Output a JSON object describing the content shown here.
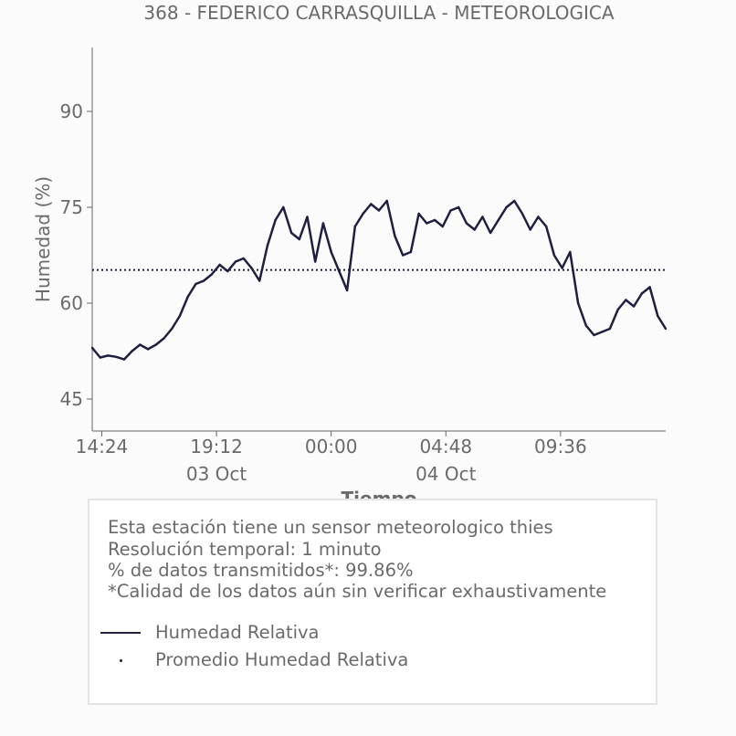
{
  "chart_data": {
    "type": "line",
    "title": "368 - FEDERICO CARRASQUILLA - METEOROLOGICA",
    "xlabel": "Tiempo",
    "ylabel": "Humedad (%)",
    "ylim": [
      40,
      100
    ],
    "yticks": [
      45,
      60,
      75,
      90
    ],
    "xticks": [
      {
        "label": "14:24",
        "x": "2023-10-03T14:24"
      },
      {
        "label": "19:12",
        "x": "2023-10-03T19:12"
      },
      {
        "label": "00:00",
        "x": "2023-10-04T00:00"
      },
      {
        "label": "04:48",
        "x": "2023-10-04T04:48"
      },
      {
        "label": "09:36",
        "x": "2023-10-04T09:36"
      }
    ],
    "date_labels": [
      {
        "label": "03 Oct",
        "x": "2023-10-03T19:12"
      },
      {
        "label": "04 Oct",
        "x": "2023-10-04T04:48"
      }
    ],
    "xlim": [
      "2023-10-03T14:00",
      "2023-10-04T14:00"
    ],
    "grid": false,
    "series": [
      {
        "name": "Humedad Relativa",
        "color": "#1f1f42",
        "style": "solid",
        "points": [
          [
            "2023-10-03T14:00",
            53.0
          ],
          [
            "2023-10-03T14:20",
            51.5
          ],
          [
            "2023-10-03T14:40",
            51.8
          ],
          [
            "2023-10-03T15:00",
            51.6
          ],
          [
            "2023-10-03T15:20",
            51.2
          ],
          [
            "2023-10-03T15:40",
            52.5
          ],
          [
            "2023-10-03T16:00",
            53.5
          ],
          [
            "2023-10-03T16:20",
            52.8
          ],
          [
            "2023-10-03T16:40",
            53.5
          ],
          [
            "2023-10-03T17:00",
            54.5
          ],
          [
            "2023-10-03T17:20",
            56.0
          ],
          [
            "2023-10-03T17:40",
            58.0
          ],
          [
            "2023-10-03T18:00",
            61.0
          ],
          [
            "2023-10-03T18:20",
            63.0
          ],
          [
            "2023-10-03T18:40",
            63.5
          ],
          [
            "2023-10-03T19:00",
            64.5
          ],
          [
            "2023-10-03T19:20",
            66.0
          ],
          [
            "2023-10-03T19:40",
            65.0
          ],
          [
            "2023-10-03T20:00",
            66.5
          ],
          [
            "2023-10-03T20:20",
            67.0
          ],
          [
            "2023-10-03T20:40",
            65.5
          ],
          [
            "2023-10-03T21:00",
            63.5
          ],
          [
            "2023-10-03T21:20",
            69.0
          ],
          [
            "2023-10-03T21:40",
            73.0
          ],
          [
            "2023-10-03T22:00",
            75.0
          ],
          [
            "2023-10-03T22:20",
            71.0
          ],
          [
            "2023-10-03T22:40",
            70.0
          ],
          [
            "2023-10-03T23:00",
            73.5
          ],
          [
            "2023-10-03T23:20",
            66.5
          ],
          [
            "2023-10-03T23:40",
            72.5
          ],
          [
            "2023-10-04T00:00",
            68.0
          ],
          [
            "2023-10-04T00:20",
            65.0
          ],
          [
            "2023-10-04T00:40",
            62.0
          ],
          [
            "2023-10-04T01:00",
            72.0
          ],
          [
            "2023-10-04T01:20",
            74.0
          ],
          [
            "2023-10-04T01:40",
            75.5
          ],
          [
            "2023-10-04T02:00",
            74.5
          ],
          [
            "2023-10-04T02:20",
            76.0
          ],
          [
            "2023-10-04T02:40",
            70.5
          ],
          [
            "2023-10-04T03:00",
            67.5
          ],
          [
            "2023-10-04T03:20",
            68.0
          ],
          [
            "2023-10-04T03:40",
            74.0
          ],
          [
            "2023-10-04T04:00",
            72.5
          ],
          [
            "2023-10-04T04:20",
            73.0
          ],
          [
            "2023-10-04T04:40",
            72.0
          ],
          [
            "2023-10-04T05:00",
            74.5
          ],
          [
            "2023-10-04T05:20",
            75.0
          ],
          [
            "2023-10-04T05:40",
            72.5
          ],
          [
            "2023-10-04T06:00",
            71.5
          ],
          [
            "2023-10-04T06:20",
            73.5
          ],
          [
            "2023-10-04T06:40",
            71.0
          ],
          [
            "2023-10-04T07:00",
            73.0
          ],
          [
            "2023-10-04T07:20",
            75.0
          ],
          [
            "2023-10-04T07:40",
            76.0
          ],
          [
            "2023-10-04T08:00",
            74.0
          ],
          [
            "2023-10-04T08:20",
            71.5
          ],
          [
            "2023-10-04T08:40",
            73.5
          ],
          [
            "2023-10-04T09:00",
            72.0
          ],
          [
            "2023-10-04T09:20",
            67.5
          ],
          [
            "2023-10-04T09:40",
            65.5
          ],
          [
            "2023-10-04T10:00",
            68.0
          ],
          [
            "2023-10-04T10:20",
            60.0
          ],
          [
            "2023-10-04T10:40",
            56.5
          ],
          [
            "2023-10-04T11:00",
            55.0
          ],
          [
            "2023-10-04T11:20",
            55.5
          ],
          [
            "2023-10-04T11:40",
            56.0
          ],
          [
            "2023-10-04T12:00",
            59.0
          ],
          [
            "2023-10-04T12:20",
            60.5
          ],
          [
            "2023-10-04T12:40",
            59.5
          ],
          [
            "2023-10-04T13:00",
            61.5
          ],
          [
            "2023-10-04T13:20",
            62.5
          ],
          [
            "2023-10-04T13:40",
            58.0
          ],
          [
            "2023-10-04T14:00",
            56.0
          ]
        ]
      },
      {
        "name": "Promedio Humedad Relativa",
        "color": "#1f1f42",
        "style": "dotted",
        "value": 65.2
      }
    ]
  },
  "info": {
    "line1": "Esta estación tiene un sensor meteorologico thies",
    "line2": "Resolución temporal: 1 minuto",
    "line3": "% de datos transmitidos*: 99.86%",
    "line4": "*Calidad de los datos aún sin verificar exhaustivamente"
  },
  "legend": {
    "item1": "Humedad Relativa",
    "item2": "Promedio Humedad Relativa"
  }
}
